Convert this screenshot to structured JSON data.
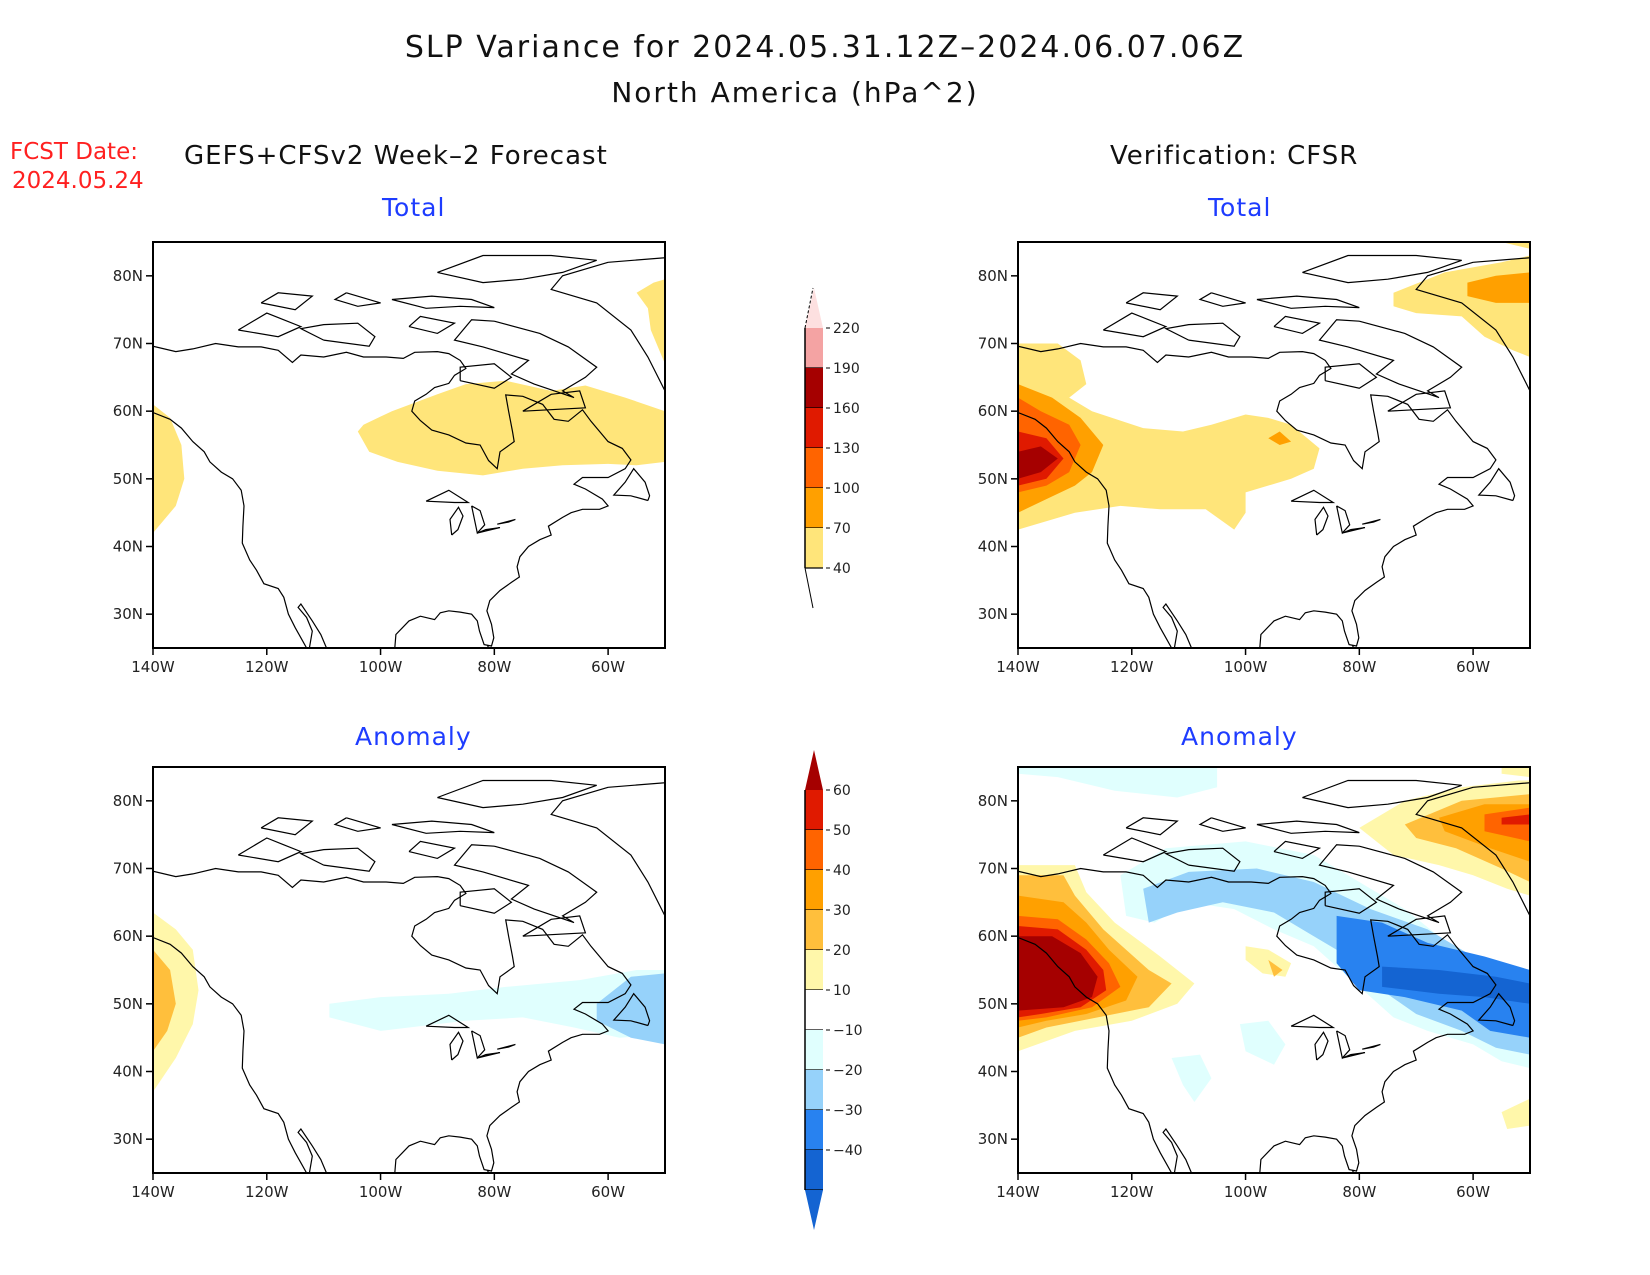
{
  "header": {
    "title": "SLP Variance for 2024.05.31.12Z–2024.06.07.06Z",
    "subtitle": "North America (hPa^2)",
    "fcst_label": "FCST Date:",
    "fcst_date": "2024.05.24",
    "left_heading": "GEFS+CFSv2 Week–2 Forecast",
    "right_heading": "Verification: CFSR"
  },
  "chart_data": [
    {
      "type": "heatmap",
      "panel": "forecast-total",
      "title": "Total",
      "xlabel": "",
      "ylabel": "",
      "xlim": [
        -140,
        -50
      ],
      "ylim": [
        25,
        85
      ],
      "x_ticks": [
        "140W",
        "120W",
        "100W",
        "80W",
        "60W"
      ],
      "y_ticks": [
        "30N",
        "40N",
        "50N",
        "60N",
        "70N",
        "80N"
      ],
      "legend": "colorbar-total",
      "regions": [
        {
          "name": "Gulf of Alaska/BC coast",
          "level": "40-70"
        },
        {
          "name": "Central Canada to Labrador",
          "level": "40-70"
        },
        {
          "name": "Greenland",
          "level": "40-70"
        }
      ]
    },
    {
      "type": "heatmap",
      "panel": "verification-total",
      "title": "Total",
      "xlim": [
        -140,
        -50
      ],
      "ylim": [
        25,
        85
      ],
      "x_ticks": [
        "140W",
        "120W",
        "100W",
        "80W",
        "60W"
      ],
      "y_ticks": [
        "30N",
        "40N",
        "50N",
        "60N",
        "70N",
        "80N"
      ],
      "legend": "colorbar-total",
      "regions": [
        {
          "name": "Gulf of Alaska maximum",
          "level": ">160"
        },
        {
          "name": "Western Canada band",
          "level": "40-70"
        },
        {
          "name": "Hudson Bay",
          "level": "70-100"
        },
        {
          "name": "Greenland",
          "level": "70-100"
        }
      ]
    },
    {
      "type": "heatmap",
      "panel": "forecast-anomaly",
      "title": "Anomaly",
      "xlim": [
        -140,
        -50
      ],
      "ylim": [
        25,
        85
      ],
      "x_ticks": [
        "140W",
        "120W",
        "100W",
        "80W",
        "60W"
      ],
      "y_ticks": [
        "30N",
        "40N",
        "50N",
        "60N",
        "70N",
        "80N"
      ],
      "legend": "colorbar-anomaly",
      "regions": [
        {
          "name": "Pacific coast",
          "level": "20-30"
        },
        {
          "name": "Great Lakes band",
          "level": "-10 to -20"
        },
        {
          "name": "Newfoundland",
          "level": "-20 to -30"
        }
      ]
    },
    {
      "type": "heatmap",
      "panel": "verification-anomaly",
      "title": "Anomaly",
      "xlim": [
        -140,
        -50
      ],
      "ylim": [
        25,
        85
      ],
      "x_ticks": [
        "140W",
        "120W",
        "100W",
        "80W",
        "60W"
      ],
      "y_ticks": [
        "30N",
        "40N",
        "50N",
        "60N",
        "70N",
        "80N"
      ],
      "legend": "colorbar-anomaly",
      "regions": [
        {
          "name": "Gulf of Alaska",
          "level": ">60"
        },
        {
          "name": "Greenland",
          "level": "40-50"
        },
        {
          "name": "Hudson Bay/Quebec",
          "level": "<-40"
        },
        {
          "name": "Arctic arc",
          "level": "-20 to -30"
        }
      ]
    }
  ],
  "colorbars": {
    "total": {
      "labels": [
        "220",
        "190",
        "160",
        "130",
        "100",
        "70",
        "40"
      ],
      "colors": [
        "#fde0e0",
        "#f4a3a3",
        "#a50000",
        "#e01a00",
        "#ff6400",
        "#ffa000",
        "#ffe57a"
      ]
    },
    "anomaly": {
      "labels": [
        "60",
        "50",
        "40",
        "30",
        "20",
        "10",
        "−10",
        "−20",
        "−30",
        "−40"
      ],
      "colors": [
        "#a50000",
        "#e01a00",
        "#ff6400",
        "#ffa000",
        "#ffbf3c",
        "#fff7aa",
        "#ffffff",
        "#e0fffe",
        "#96d2fa",
        "#2882f0",
        "#1464d2"
      ]
    }
  },
  "colors": {
    "title_blue": "#1e3cff",
    "fcst_red": "#ff2020"
  }
}
